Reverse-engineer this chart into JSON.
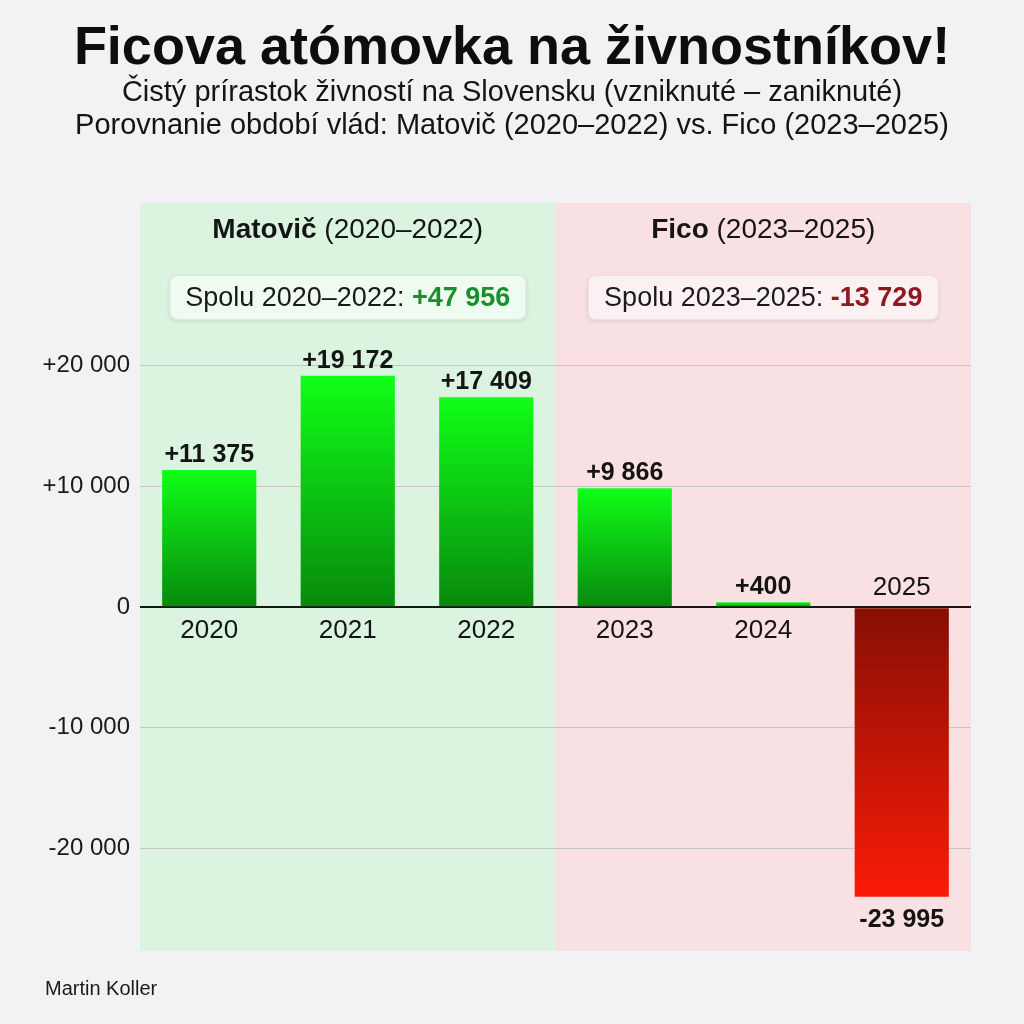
{
  "chart_data": {
    "type": "bar",
    "title": "Ficova atómovka na živnostníkov!",
    "subtitle": "Čistý prírastok živností na Slovensku (vzniknuté – zaniknuté)\nPorovnanie období vlád: Matovič (2020–2022) vs. Fico (2023–2025)",
    "categories": [
      "2020",
      "2021",
      "2022",
      "2023",
      "2024",
      "2025"
    ],
    "values": [
      11375,
      19172,
      17409,
      9866,
      400,
      -23995
    ],
    "colors": [
      "#0cc412",
      "#0cc412",
      "#0cc412",
      "#0cc412",
      "#0cc412",
      "#c01505"
    ],
    "value_labels": [
      "+11 375",
      "+19 172",
      "+17 409",
      "+9 866",
      "+400",
      "-23 995"
    ],
    "ylim": [
      -28500,
      33500
    ],
    "yticks": [
      {
        "value": -20000,
        "label": "-20 000"
      },
      {
        "value": -10000,
        "label": "-10 000"
      },
      0,
      {
        "value": 10000,
        "label": "+10 000"
      },
      {
        "value": 20000,
        "label": "+20 000"
      }
    ],
    "grid": "y",
    "bands": [
      {
        "axis": "x",
        "from": "2020",
        "to": "2022",
        "label": "Matovič (2020–2022)",
        "color": "#dbf4df"
      },
      {
        "axis": "x",
        "from": "2023",
        "to": "2025",
        "label": "Fico (2023–2025)",
        "color": "#f9e0e2"
      }
    ],
    "annotations": [
      "Spolu 2020–2022: +47 956",
      "Spolu 2023–2025: -13 729",
      "Martin Koller"
    ]
  }
}
